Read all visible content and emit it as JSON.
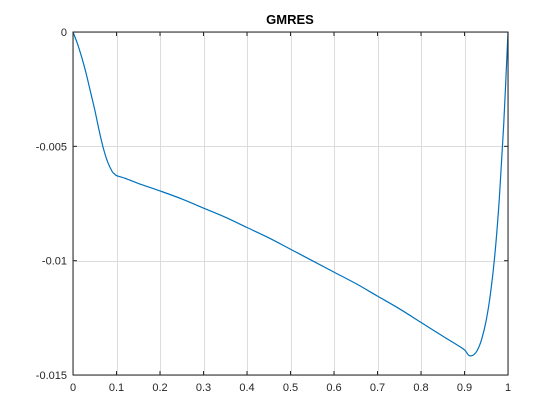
{
  "chart_data": {
    "type": "line",
    "title": "GMRES",
    "xlabel": "",
    "ylabel": "",
    "xlim": [
      0,
      1
    ],
    "ylim": [
      -0.015,
      0
    ],
    "x_ticks": [
      0,
      0.1,
      0.2,
      0.3,
      0.4,
      0.5,
      0.6,
      0.7,
      0.8,
      0.9,
      1
    ],
    "x_tick_labels": [
      "0",
      "0.1",
      "0.2",
      "0.3",
      "0.4",
      "0.5",
      "0.6",
      "0.7",
      "0.8",
      "0.9",
      "1"
    ],
    "y_ticks": [
      0,
      -0.005,
      -0.01,
      -0.015
    ],
    "y_tick_labels": [
      "0",
      "-0.005",
      "-0.01",
      "-0.015"
    ],
    "grid": true,
    "legend": "none",
    "series": [
      {
        "color": "#0072BD",
        "x": [
          0,
          0.01,
          0.02,
          0.03,
          0.04,
          0.05,
          0.06,
          0.07,
          0.08,
          0.09,
          0.095,
          0.1,
          0.11,
          0.12,
          0.15,
          0.2,
          0.25,
          0.3,
          0.35,
          0.4,
          0.45,
          0.5,
          0.55,
          0.6,
          0.65,
          0.7,
          0.75,
          0.8,
          0.85,
          0.88,
          0.9,
          0.91,
          0.92,
          0.93,
          0.94,
          0.95,
          0.96,
          0.97,
          0.98,
          0.99,
          1.0
        ],
        "y": [
          0,
          -0.0005,
          -0.0011,
          -0.0018,
          -0.0026,
          -0.0034,
          -0.0043,
          -0.0051,
          -0.0057,
          -0.0061,
          -0.0062,
          -0.00628,
          -0.00634,
          -0.0064,
          -0.00662,
          -0.00695,
          -0.0073,
          -0.0077,
          -0.0081,
          -0.00855,
          -0.009,
          -0.0095,
          -0.01,
          -0.0105,
          -0.011,
          -0.01155,
          -0.0121,
          -0.0127,
          -0.0133,
          -0.01365,
          -0.0139,
          -0.01414,
          -0.01413,
          -0.0139,
          -0.0134,
          -0.0126,
          -0.0114,
          -0.0097,
          -0.0073,
          -0.0041,
          0
        ]
      }
    ]
  }
}
